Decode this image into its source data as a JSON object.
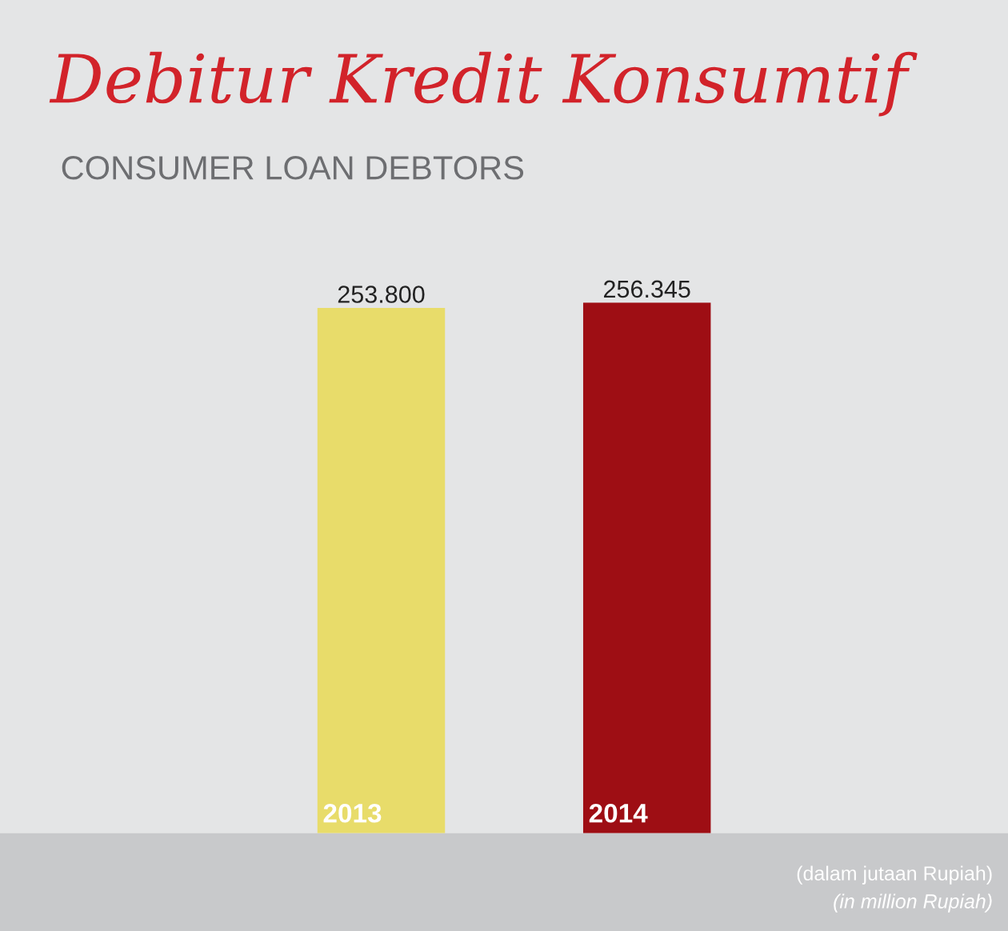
{
  "chart_data": {
    "type": "bar",
    "title": "Debitur Kredit Konsumtif",
    "subtitle": "CONSUMER LOAN DEBTORS",
    "categories": [
      "2013",
      "2014"
    ],
    "values": [
      253800,
      256345
    ],
    "colors": [
      "#e8dc6a",
      "#9e0e14"
    ],
    "value_labels": [
      "253.800",
      "256.345"
    ],
    "annotations": [
      "(dalam jutaan Rupiah)",
      "(in million Rupiah)"
    ]
  }
}
